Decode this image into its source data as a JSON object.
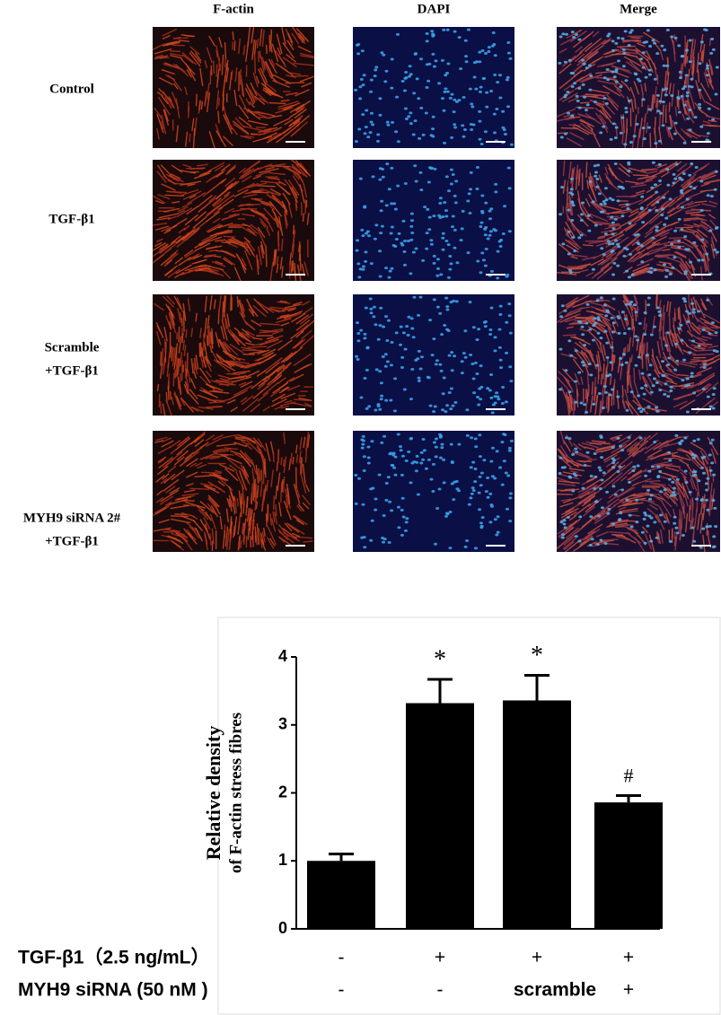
{
  "panels": {
    "columns": [
      "F-actin",
      "DAPI",
      "Merge"
    ],
    "rows": [
      [
        "Control"
      ],
      [
        "TGF-β1"
      ],
      [
        "Scramble",
        "+TGF-β1"
      ],
      [
        "MYH9 siRNA 2#",
        "+TGF-β1"
      ]
    ]
  },
  "chart_data": {
    "type": "bar",
    "ylabel": [
      "Relative density",
      "of F-actin stress fibres"
    ],
    "categories": [
      null,
      null,
      null,
      null
    ],
    "values": [
      1.0,
      3.32,
      3.36,
      1.86
    ],
    "errors": [
      0.1,
      0.35,
      0.37,
      0.1
    ],
    "annotations": [
      null,
      "*",
      "*",
      "#"
    ],
    "color": "#000000",
    "ylim": [
      0,
      4
    ],
    "yticks": [
      0,
      1,
      2,
      3,
      4
    ],
    "condition_rows": [
      {
        "label": "TGF-β1（2.5 ng/mL）",
        "values": [
          "-",
          "+",
          "+",
          "+"
        ]
      },
      {
        "label": "MYH9 siRNA (50 nM )",
        "values": [
          "-",
          "-",
          "scramble",
          "+"
        ]
      }
    ]
  }
}
